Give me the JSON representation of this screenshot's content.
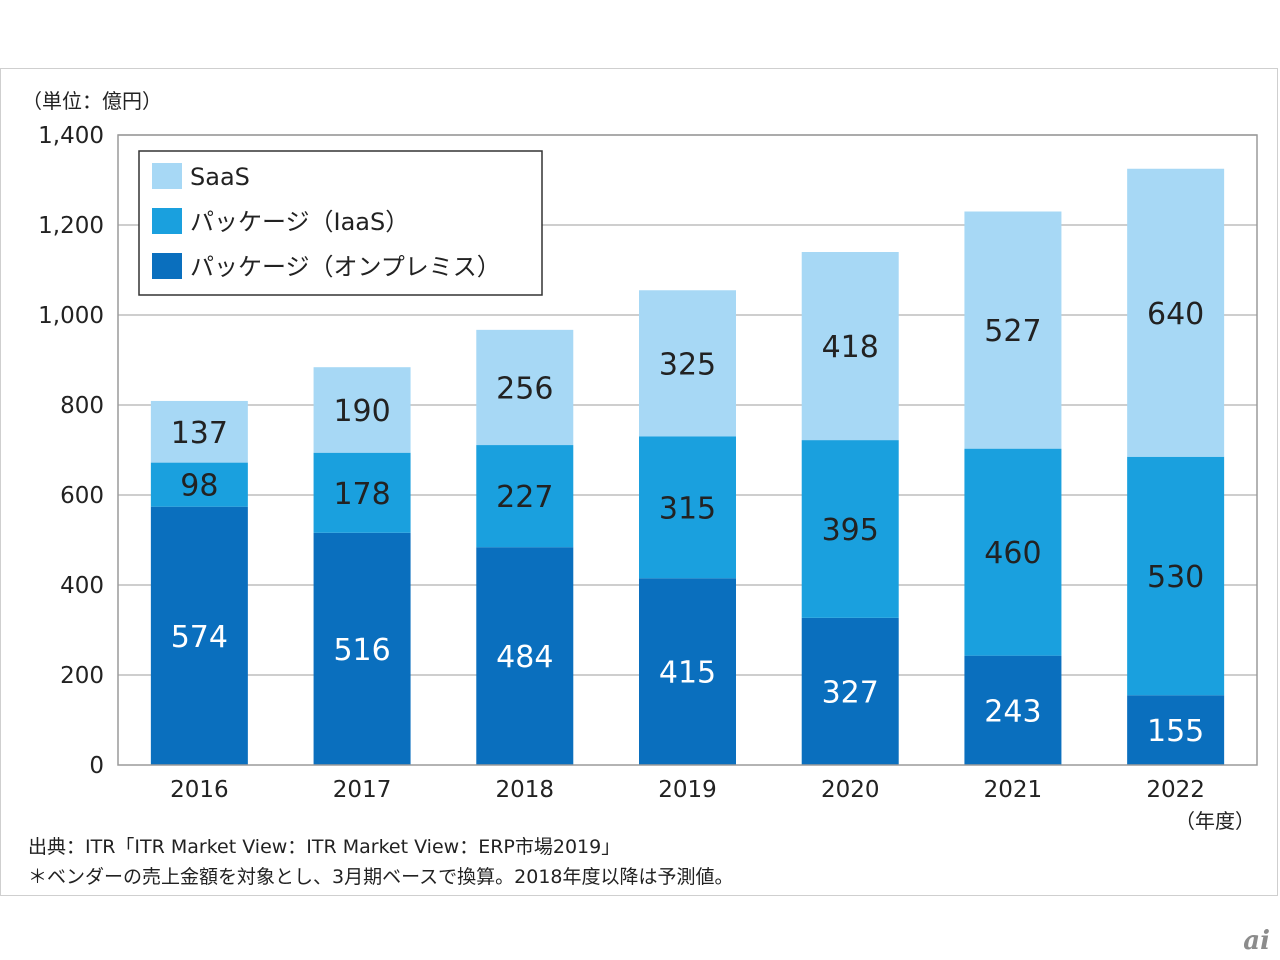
{
  "chart_data": {
    "type": "bar",
    "stacked": true,
    "unit_label": "（単位：億円）",
    "categories": [
      "2016",
      "2017",
      "2018",
      "2019",
      "2020",
      "2021",
      "2022"
    ],
    "x_unit_label": "（年度）",
    "ylim": [
      0,
      1400
    ],
    "yticks": [
      0,
      200,
      400,
      600,
      800,
      1000,
      1200,
      1400
    ],
    "ytick_labels": [
      "0",
      "200",
      "400",
      "600",
      "800",
      "1,000",
      "1,200",
      "1,400"
    ],
    "grid": true,
    "legend_position": "top-left",
    "series": [
      {
        "name": "パッケージ（オンプレミス）",
        "color": "#0a6fbe",
        "label_color": "#ffffff",
        "values": [
          574,
          516,
          484,
          415,
          327,
          243,
          155
        ]
      },
      {
        "name": "パッケージ（IaaS）",
        "color": "#1aa0de",
        "label_color": "#222222",
        "values": [
          98,
          178,
          227,
          315,
          395,
          460,
          530
        ]
      },
      {
        "name": "SaaS",
        "color": "#a7d8f5",
        "label_color": "#222222",
        "values": [
          137,
          190,
          256,
          325,
          418,
          527,
          640
        ]
      }
    ],
    "legend_order": [
      "SaaS",
      "パッケージ（IaaS）",
      "パッケージ（オンプレミス）"
    ]
  },
  "notes": {
    "source": "出典：ITR「ITR Market View：ITR Market View：ERP市場2019」",
    "footnote": "＊ベンダーの売上金額を対象とし、3月期ベースで換算。2018年度以降は予測値。"
  },
  "watermark": "ai"
}
